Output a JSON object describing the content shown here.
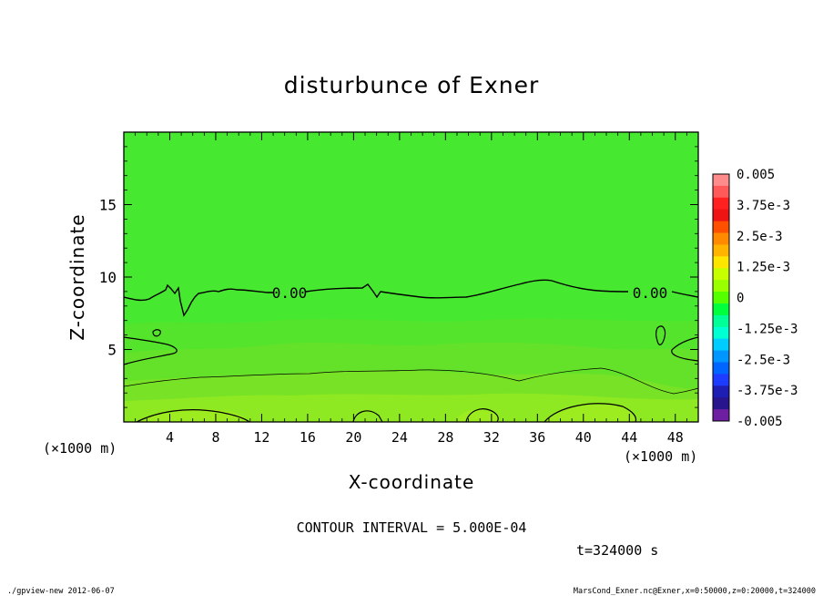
{
  "chart_data": {
    "type": "heatmap",
    "title": "disturbunce of Exner",
    "xlabel": "X-coordinate",
    "ylabel": "Z-coordinate",
    "x_unit": "(×1000 m)",
    "y_unit": "(×1000 m)",
    "xlim": [
      0,
      50
    ],
    "ylim": [
      0,
      20
    ],
    "x_ticks": [
      4,
      8,
      12,
      16,
      20,
      24,
      28,
      32,
      36,
      40,
      44,
      48
    ],
    "y_ticks": [
      5,
      10,
      15
    ],
    "contour_interval_text": "CONTOUR INTERVAL = 5.000E-04",
    "time_text": "t=324000 s",
    "contour_labels": [
      "0.00",
      "0.00"
    ],
    "colorbar": {
      "labels": [
        "0.005",
        "3.75e-3",
        "2.5e-3",
        "1.25e-3",
        "0",
        "-1.25e-3",
        "-2.5e-3",
        "-3.75e-3",
        "-0.005"
      ],
      "colors": [
        "#ff8c8c",
        "#ff5a5a",
        "#ff2020",
        "#ee1414",
        "#ff5000",
        "#ff8a00",
        "#ffb400",
        "#ffe600",
        "#c8ff00",
        "#9aff00",
        "#55ff00",
        "#00ff3c",
        "#00ff96",
        "#00ffd2",
        "#00ccff",
        "#0096ff",
        "#0064ff",
        "#1e3cff",
        "#1e1eb4",
        "#28148c",
        "#6e1ea0"
      ]
    }
  },
  "footer": {
    "left": "./gpview-new  2012-06-07",
    "right": "MarsCond_Exner.nc@Exner,x=0:50000,z=0:20000,t=324000"
  }
}
